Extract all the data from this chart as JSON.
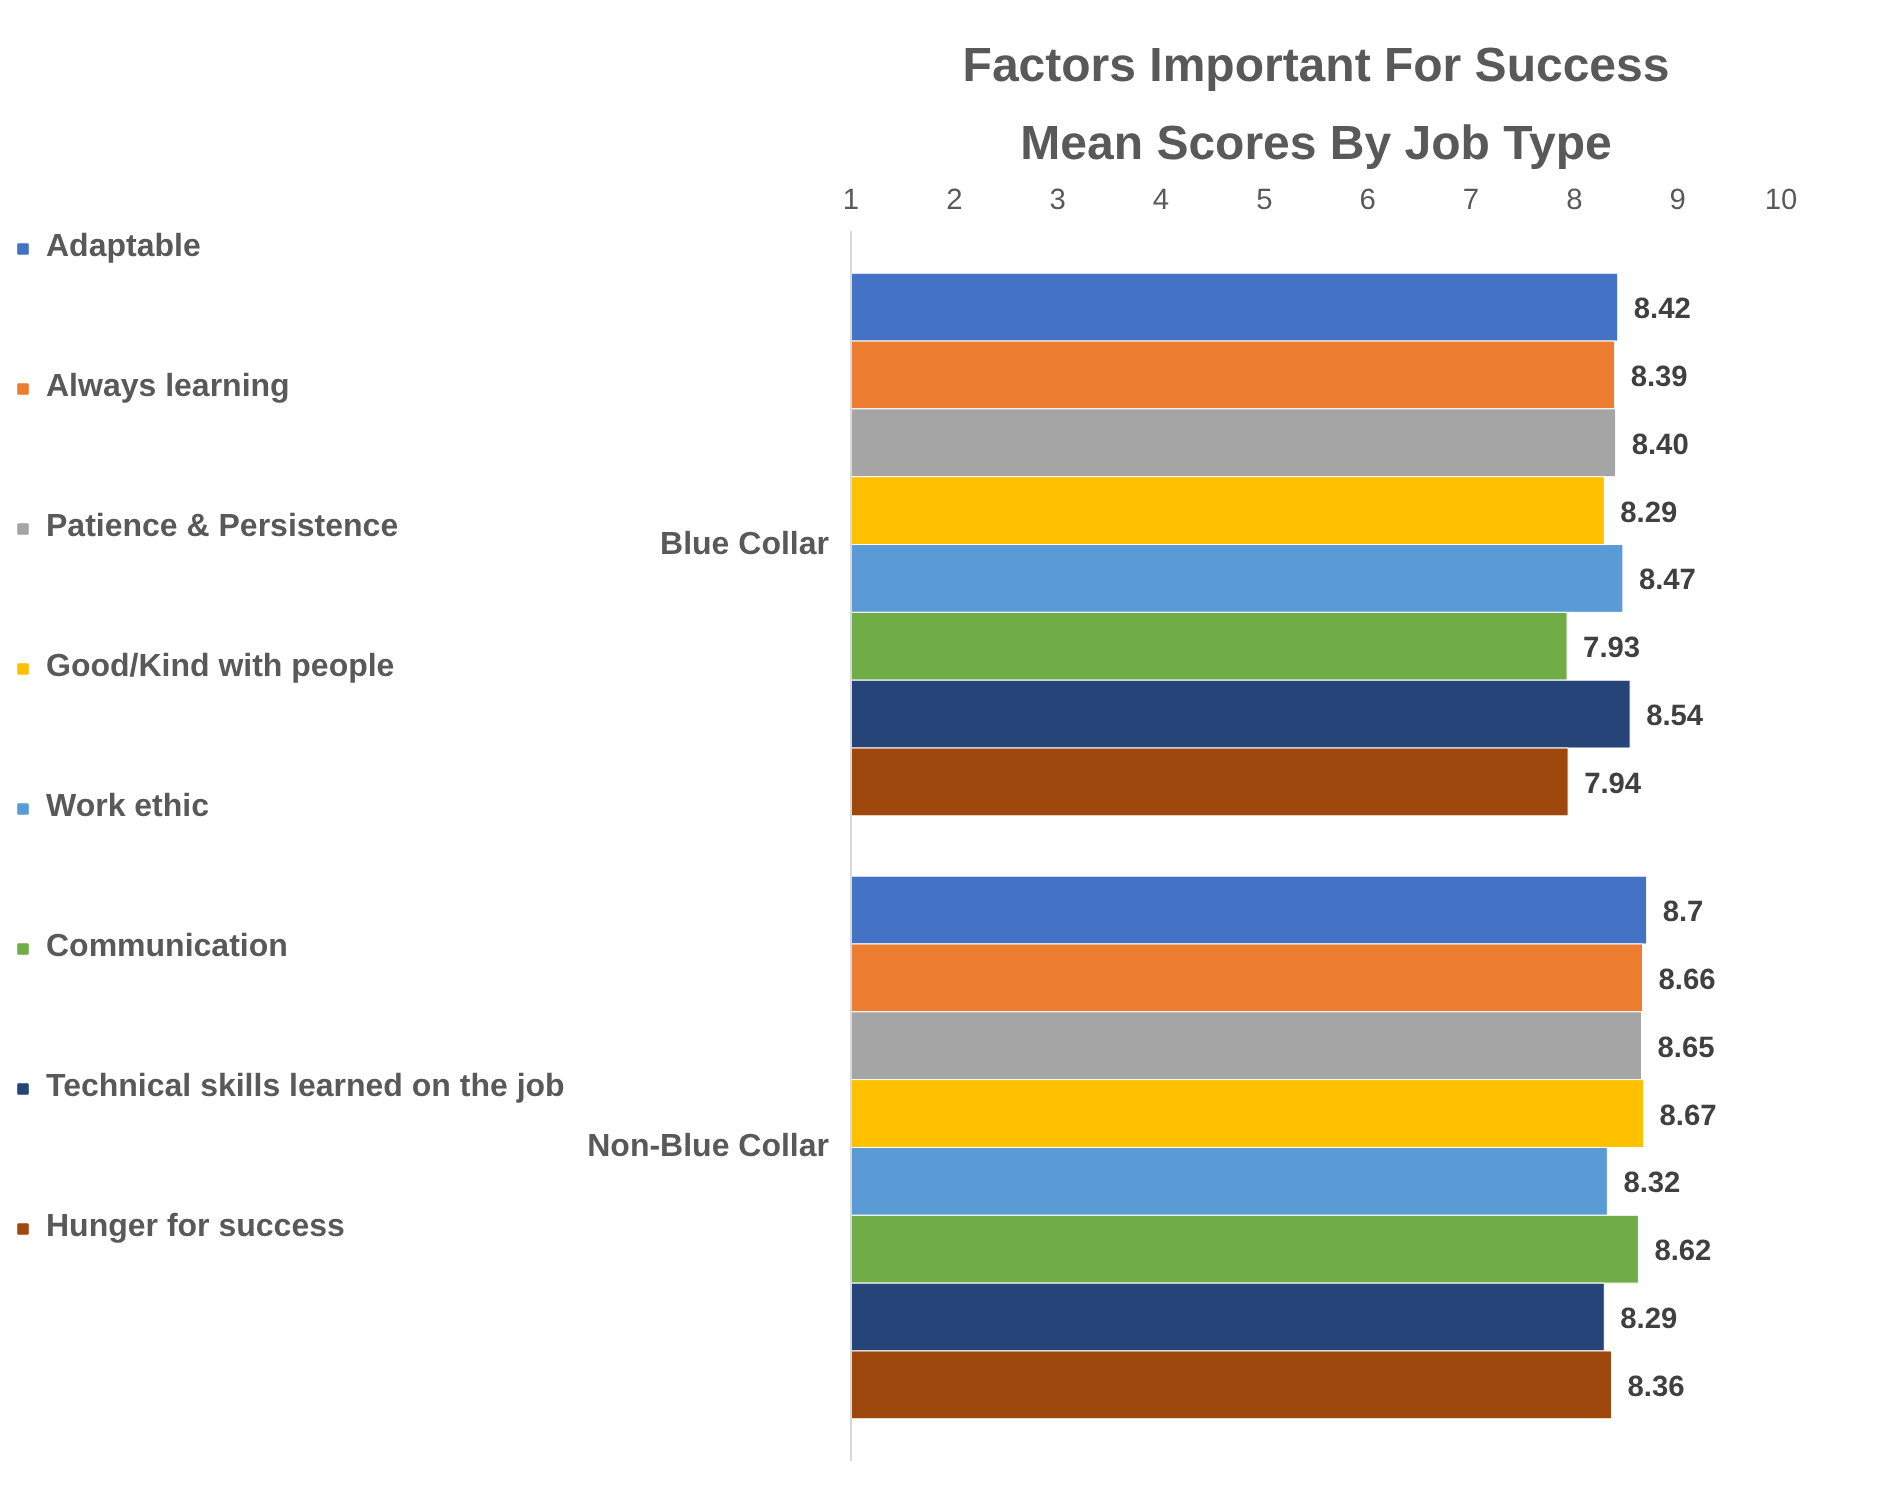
{
  "chart_data": {
    "type": "bar",
    "orientation": "horizontal",
    "title": "Factors Important For Success",
    "subtitle": "Mean Scores By Job Type",
    "categories": [
      "Blue Collar",
      "Non-Blue Collar"
    ],
    "series": [
      {
        "name": "Adaptable",
        "color": "#4472c4",
        "values": [
          8.42,
          8.7
        ],
        "value_labels": [
          "8.42",
          "8.7"
        ]
      },
      {
        "name": "Always learning",
        "color": "#ed7d31",
        "values": [
          8.39,
          8.66
        ],
        "value_labels": [
          "8.39",
          "8.66"
        ]
      },
      {
        "name": "Patience & Persistence",
        "color": "#a5a5a5",
        "values": [
          8.4,
          8.65
        ],
        "value_labels": [
          "8.40",
          "8.65"
        ]
      },
      {
        "name": "Good/Kind with people",
        "color": "#ffc000",
        "values": [
          8.29,
          8.67
        ],
        "value_labels": [
          "8.29",
          "8.67"
        ]
      },
      {
        "name": "Work ethic",
        "color": "#5b9bd5",
        "values": [
          8.47,
          8.32
        ],
        "value_labels": [
          "8.47",
          "8.32"
        ]
      },
      {
        "name": "Communication",
        "color": "#70ad47",
        "values": [
          7.93,
          8.62
        ],
        "value_labels": [
          "7.93",
          "8.62"
        ]
      },
      {
        "name": "Technical skills learned on the job",
        "color": "#264478",
        "values": [
          8.54,
          8.29
        ],
        "value_labels": [
          "8.54",
          "8.29"
        ]
      },
      {
        "name": "Hunger for success",
        "color": "#9e480e",
        "values": [
          7.94,
          8.36
        ],
        "value_labels": [
          "7.94",
          "8.36"
        ]
      }
    ],
    "xlim": [
      1,
      10
    ],
    "xticks": [
      1,
      2,
      3,
      4,
      5,
      6,
      7,
      8,
      9,
      10
    ],
    "grid": false,
    "legend": "left"
  }
}
